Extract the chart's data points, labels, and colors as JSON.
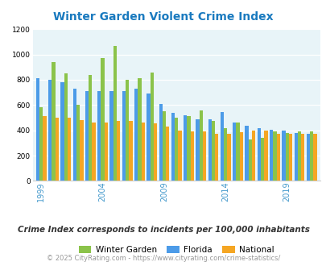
{
  "title": "Winter Garden Violent Crime Index",
  "subtitle": "Crime Index corresponds to incidents per 100,000 inhabitants",
  "footer": "© 2025 CityRating.com - https://www.cityrating.com/crime-statistics/",
  "years": [
    1999,
    2000,
    2001,
    2002,
    2003,
    2004,
    2005,
    2006,
    2007,
    2008,
    2009,
    2010,
    2011,
    2012,
    2013,
    2014,
    2015,
    2016,
    2017,
    2018,
    2019,
    2020,
    2021
  ],
  "winter_garden": [
    580,
    940,
    850,
    600,
    840,
    970,
    1070,
    800,
    810,
    860,
    550,
    500,
    515,
    555,
    475,
    420,
    460,
    325,
    340,
    390,
    380,
    390,
    390
  ],
  "florida": [
    810,
    800,
    780,
    730,
    710,
    710,
    710,
    710,
    730,
    690,
    610,
    540,
    520,
    490,
    490,
    545,
    465,
    435,
    415,
    405,
    395,
    380,
    375
  ],
  "national": [
    510,
    500,
    500,
    480,
    460,
    460,
    475,
    475,
    465,
    455,
    430,
    400,
    390,
    390,
    375,
    375,
    385,
    395,
    395,
    375,
    375,
    375,
    375
  ],
  "wg_color": "#8bc34a",
  "fl_color": "#4c9be8",
  "nat_color": "#f5a623",
  "bg_color": "#e8f4f8",
  "title_color": "#1a7abf",
  "subtitle_color": "#333333",
  "footer_color": "#999999",
  "ylim": [
    0,
    1200
  ],
  "yticks": [
    0,
    200,
    400,
    600,
    800,
    1000,
    1200
  ],
  "xtick_years": [
    1999,
    2004,
    2009,
    2014,
    2019
  ]
}
